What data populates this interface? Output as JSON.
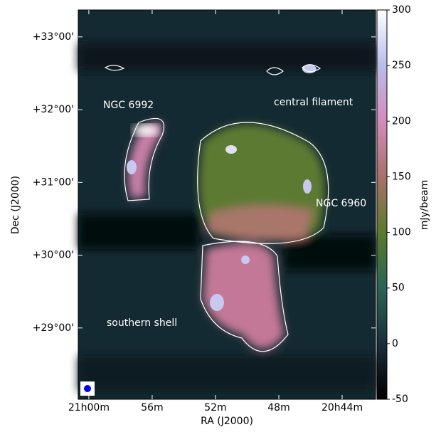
{
  "chart_data": {
    "type": "image",
    "xlabel": "RA (J2000)",
    "ylabel": "Dec (J2000)",
    "xlim": [
      1260.67,
      1241.89
    ],
    "xticks": [
      {
        "value": 1260,
        "label": "21h00m"
      },
      {
        "value": 1256,
        "label": "56m"
      },
      {
        "value": 1252,
        "label": "52m"
      },
      {
        "value": 1248,
        "label": "48m"
      },
      {
        "value": 1244,
        "label": "20h44m"
      }
    ],
    "ylim": [
      28.02,
      33.37
    ],
    "yticks": [
      {
        "value": 33,
        "label": "+33°00'"
      },
      {
        "value": 32,
        "label": "+32°00'"
      },
      {
        "value": 31,
        "label": "+31°00'"
      },
      {
        "value": 30,
        "label": "+30°00'"
      },
      {
        "value": 29,
        "label": "+29°00'"
      }
    ],
    "colorbar": {
      "label": "mJy/beam",
      "lim": [
        -50,
        300
      ],
      "ticks": [
        -50,
        0,
        50,
        100,
        150,
        200,
        250,
        300
      ]
    },
    "annotations": [
      "NGC 6992",
      "central filament",
      "NGC 6960",
      "southern shell"
    ]
  }
}
